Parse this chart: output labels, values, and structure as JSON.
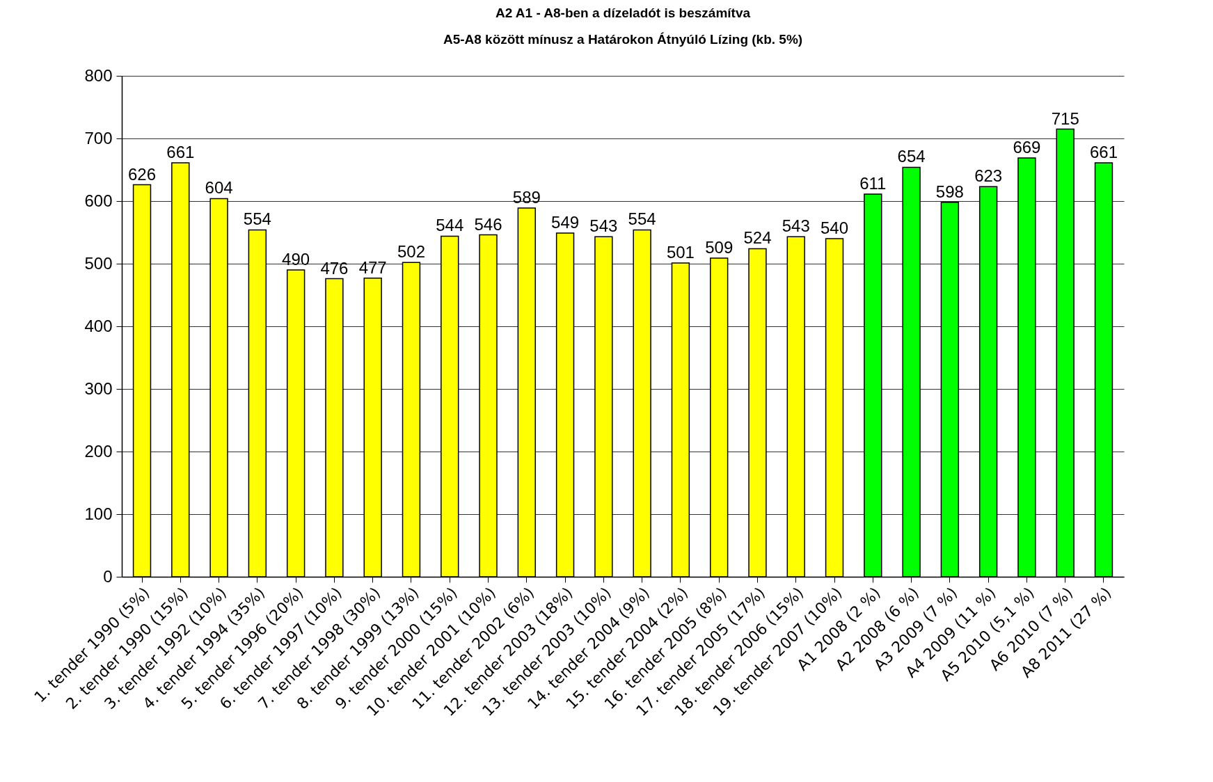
{
  "chart_data": {
    "type": "bar",
    "annotations": [
      "A2 A1 - A8-ben a dízeladót is beszámítva",
      "A5-A8 között mínusz a Határokon Átnyúló Lízing (kb. 5%)"
    ],
    "categories": [
      "1. tender 1990  (5%)",
      "2. tender 1990 (15%)",
      "3. tender 1992 (10%)",
      "4. tender 1994 (35%)",
      "5. tender 1996 (20%)",
      "6. tender 1997 (10%)",
      "7. tender 1998 (30%)",
      "8. tender 1999 (13%)",
      "9. tender 2000 (15%)",
      "10. tender 2001 (10%)",
      "11. tender 2002 (6%)",
      "12. tender 2003 (18%)",
      "13. tender 2003 (10%)",
      "14. tender 2004 (9%)",
      "15. tender 2004 (2%)",
      "16. tender 2005 (8%)",
      "17. tender 2005 (17%)",
      "18. tender 2006 (15%)",
      "19. tender 2007 (10%)",
      "A1 2008 (2 %)",
      "A2 2008 (6 %)",
      "A3 2009 (7 %)",
      "A4 2009 (11 %)",
      "A5 2010 (5,1 %)",
      "A6 2010 (7 %)",
      "A8 2011 (27 %)"
    ],
    "values": [
      626,
      661,
      604,
      554,
      490,
      476,
      477,
      502,
      544,
      546,
      589,
      549,
      543,
      554,
      501,
      509,
      524,
      543,
      540,
      611,
      654,
      598,
      623,
      669,
      715,
      661
    ],
    "colors": [
      "#ffff00",
      "#ffff00",
      "#ffff00",
      "#ffff00",
      "#ffff00",
      "#ffff00",
      "#ffff00",
      "#ffff00",
      "#ffff00",
      "#ffff00",
      "#ffff00",
      "#ffff00",
      "#ffff00",
      "#ffff00",
      "#ffff00",
      "#ffff00",
      "#ffff00",
      "#ffff00",
      "#ffff00",
      "#00ff00",
      "#00ff00",
      "#00ff00",
      "#00ff00",
      "#00ff00",
      "#00ff00",
      "#00ff00"
    ],
    "ylim": [
      0,
      800
    ],
    "yticks": [
      0,
      100,
      200,
      300,
      400,
      500,
      600,
      700,
      800
    ],
    "grid": "y",
    "data_labels": true
  }
}
